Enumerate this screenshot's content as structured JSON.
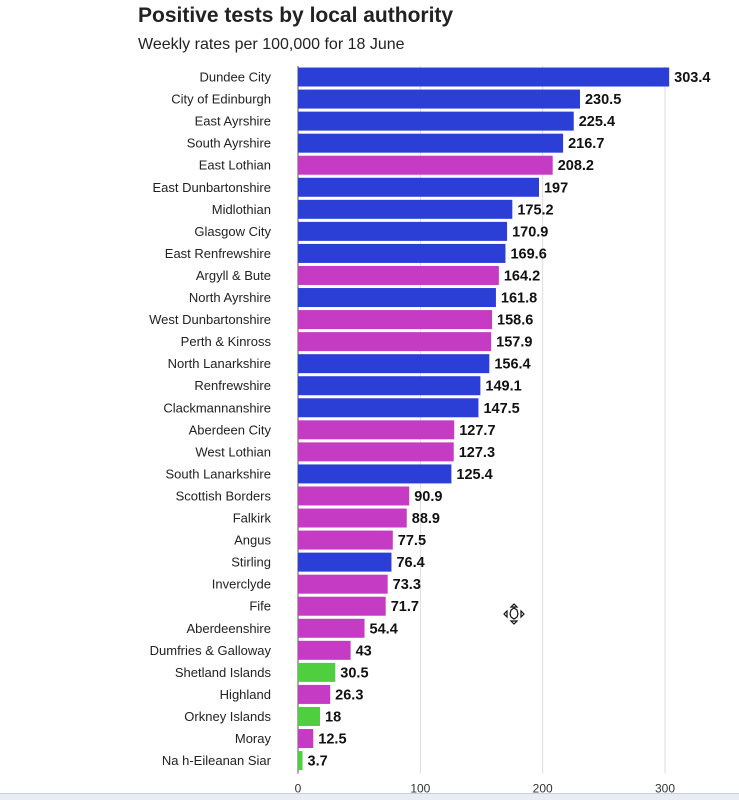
{
  "chart_data": {
    "type": "bar",
    "orientation": "horizontal",
    "title": "Positive tests by local authority",
    "subtitle": "Weekly rates per 100,000 for 18 June",
    "xlim": [
      0,
      310
    ],
    "xticks": [
      0,
      100,
      200,
      300
    ],
    "grid": true,
    "colors": {
      "blue": "#2b3fd6",
      "magenta": "#c63bc4",
      "green": "#4fcf3f"
    },
    "categories": [
      "Dundee City",
      "City of Edinburgh",
      "East Ayrshire",
      "South Ayrshire",
      "East Lothian",
      "East Dunbartonshire",
      "Midlothian",
      "Glasgow City",
      "East Renfrewshire",
      "Argyll & Bute",
      "North Ayrshire",
      "West Dunbartonshire",
      "Perth & Kinross",
      "North Lanarkshire",
      "Renfrewshire",
      "Clackmannanshire",
      "Aberdeen City",
      "West Lothian",
      "South Lanarkshire",
      "Scottish Borders",
      "Falkirk",
      "Angus",
      "Stirling",
      "Inverclyde",
      "Fife",
      "Aberdeenshire",
      "Dumfries & Galloway",
      "Shetland Islands",
      "Highland",
      "Orkney Islands",
      "Moray",
      "Na h-Eileanan Siar"
    ],
    "values": [
      303.4,
      230.5,
      225.4,
      216.7,
      208.2,
      197,
      175.2,
      170.9,
      169.6,
      164.2,
      161.8,
      158.6,
      157.9,
      156.4,
      149.1,
      147.5,
      127.7,
      127.3,
      125.4,
      90.9,
      88.9,
      77.5,
      76.4,
      73.3,
      71.7,
      54.4,
      43,
      30.5,
      26.3,
      18,
      12.5,
      3.7
    ],
    "value_labels": [
      "303.4",
      "230.5",
      "225.4",
      "216.7",
      "208.2",
      "197",
      "175.2",
      "170.9",
      "169.6",
      "164.2",
      "161.8",
      "158.6",
      "157.9",
      "156.4",
      "149.1",
      "147.5",
      "127.7",
      "127.3",
      "125.4",
      "90.9",
      "88.9",
      "77.5",
      "76.4",
      "73.3",
      "71.7",
      "54.4",
      "43",
      "30.5",
      "26.3",
      "18",
      "12.5",
      "3.7"
    ],
    "bar_colors": [
      "#2b3fd6",
      "#2b3fd6",
      "#2b3fd6",
      "#2b3fd6",
      "#c63bc4",
      "#2b3fd6",
      "#2b3fd6",
      "#2b3fd6",
      "#2b3fd6",
      "#c63bc4",
      "#2b3fd6",
      "#c63bc4",
      "#c63bc4",
      "#2b3fd6",
      "#2b3fd6",
      "#2b3fd6",
      "#c63bc4",
      "#c63bc4",
      "#2b3fd6",
      "#c63bc4",
      "#c63bc4",
      "#c63bc4",
      "#2b3fd6",
      "#c63bc4",
      "#c63bc4",
      "#c63bc4",
      "#c63bc4",
      "#4fcf3f",
      "#c63bc4",
      "#4fcf3f",
      "#c63bc4",
      "#4fcf3f"
    ]
  }
}
